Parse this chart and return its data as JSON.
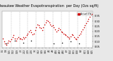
{
  "title": "Milwaukee Weather Evapotranspiration  per Day (Ozs sq/ft)",
  "title_fontsize": 3.5,
  "bg_color": "#e8e8e8",
  "plot_bg": "#ffffff",
  "x_values": [
    0,
    1,
    2,
    3,
    4,
    5,
    6,
    7,
    8,
    9,
    10,
    11,
    12,
    13,
    14,
    15,
    16,
    17,
    18,
    19,
    20,
    21,
    22,
    23,
    24,
    25,
    26,
    27,
    28,
    29,
    30,
    31,
    32,
    33,
    34,
    35,
    36,
    37,
    38,
    39,
    40,
    41,
    42,
    43,
    44,
    45,
    46,
    47,
    48,
    49,
    50,
    51,
    52,
    53,
    54,
    55,
    56,
    57,
    58,
    59,
    60,
    61,
    62,
    63,
    64,
    65,
    66,
    67,
    68,
    69,
    70,
    71,
    72,
    73,
    74,
    75
  ],
  "y_values": [
    0.13,
    0.1,
    0.08,
    0.07,
    0.09,
    0.11,
    0.1,
    0.12,
    0.14,
    0.16,
    0.13,
    0.11,
    0.13,
    0.14,
    0.13,
    0.13,
    0.12,
    0.14,
    0.13,
    0.14,
    0.16,
    0.18,
    0.2,
    0.21,
    0.19,
    0.17,
    0.18,
    0.21,
    0.24,
    0.27,
    0.26,
    0.24,
    0.23,
    0.21,
    0.24,
    0.27,
    0.29,
    0.31,
    0.3,
    0.29,
    0.27,
    0.25,
    0.26,
    0.24,
    0.22,
    0.2,
    0.21,
    0.23,
    0.22,
    0.2,
    0.19,
    0.18,
    0.17,
    0.16,
    0.15,
    0.14,
    0.13,
    0.15,
    0.17,
    0.16,
    0.14,
    0.13,
    0.12,
    0.14,
    0.16,
    0.18,
    0.2,
    0.22,
    0.24,
    0.26,
    0.28,
    0.3,
    0.32,
    0.34,
    0.36,
    0.37
  ],
  "black_y_values": [
    0.08,
    0.11,
    0.09,
    0.11,
    0.08,
    0.09,
    0.1,
    0.08
  ],
  "black_x_values": [
    3,
    10,
    17,
    24,
    43,
    50,
    57,
    64
  ],
  "dot_color": "#cc0000",
  "dot_color2": "#111111",
  "vline_positions": [
    7,
    14,
    21,
    28,
    35,
    42,
    49,
    56,
    63,
    70
  ],
  "vline_color": "#bbbbbb",
  "legend_label": "Actual ETo",
  "legend_color": "#cc0000",
  "ylim": [
    0.04,
    0.4
  ],
  "xlim": [
    -0.5,
    75.5
  ],
  "ytick_values": [
    0.05,
    0.1,
    0.15,
    0.2,
    0.25,
    0.3,
    0.35
  ],
  "xtick_positions": [
    0,
    3,
    6,
    9,
    12,
    15,
    18,
    21,
    24,
    27,
    30,
    33,
    36,
    39,
    42,
    45,
    48,
    51,
    54,
    57,
    60,
    63,
    66,
    69,
    72,
    75
  ],
  "xtick_labels": [
    "1/1",
    "1/8",
    "1/15",
    "1/22",
    "1/29",
    "2/5",
    "2/12",
    "2/19",
    "2/26",
    "3/5",
    "3/12",
    "3/19",
    "3/26",
    "4/2",
    "4/9",
    "4/16",
    "4/23",
    "4/30",
    "5/7",
    "5/14",
    "5/21",
    "5/28",
    "6/4",
    "6/11",
    "6/18",
    "6/25"
  ]
}
